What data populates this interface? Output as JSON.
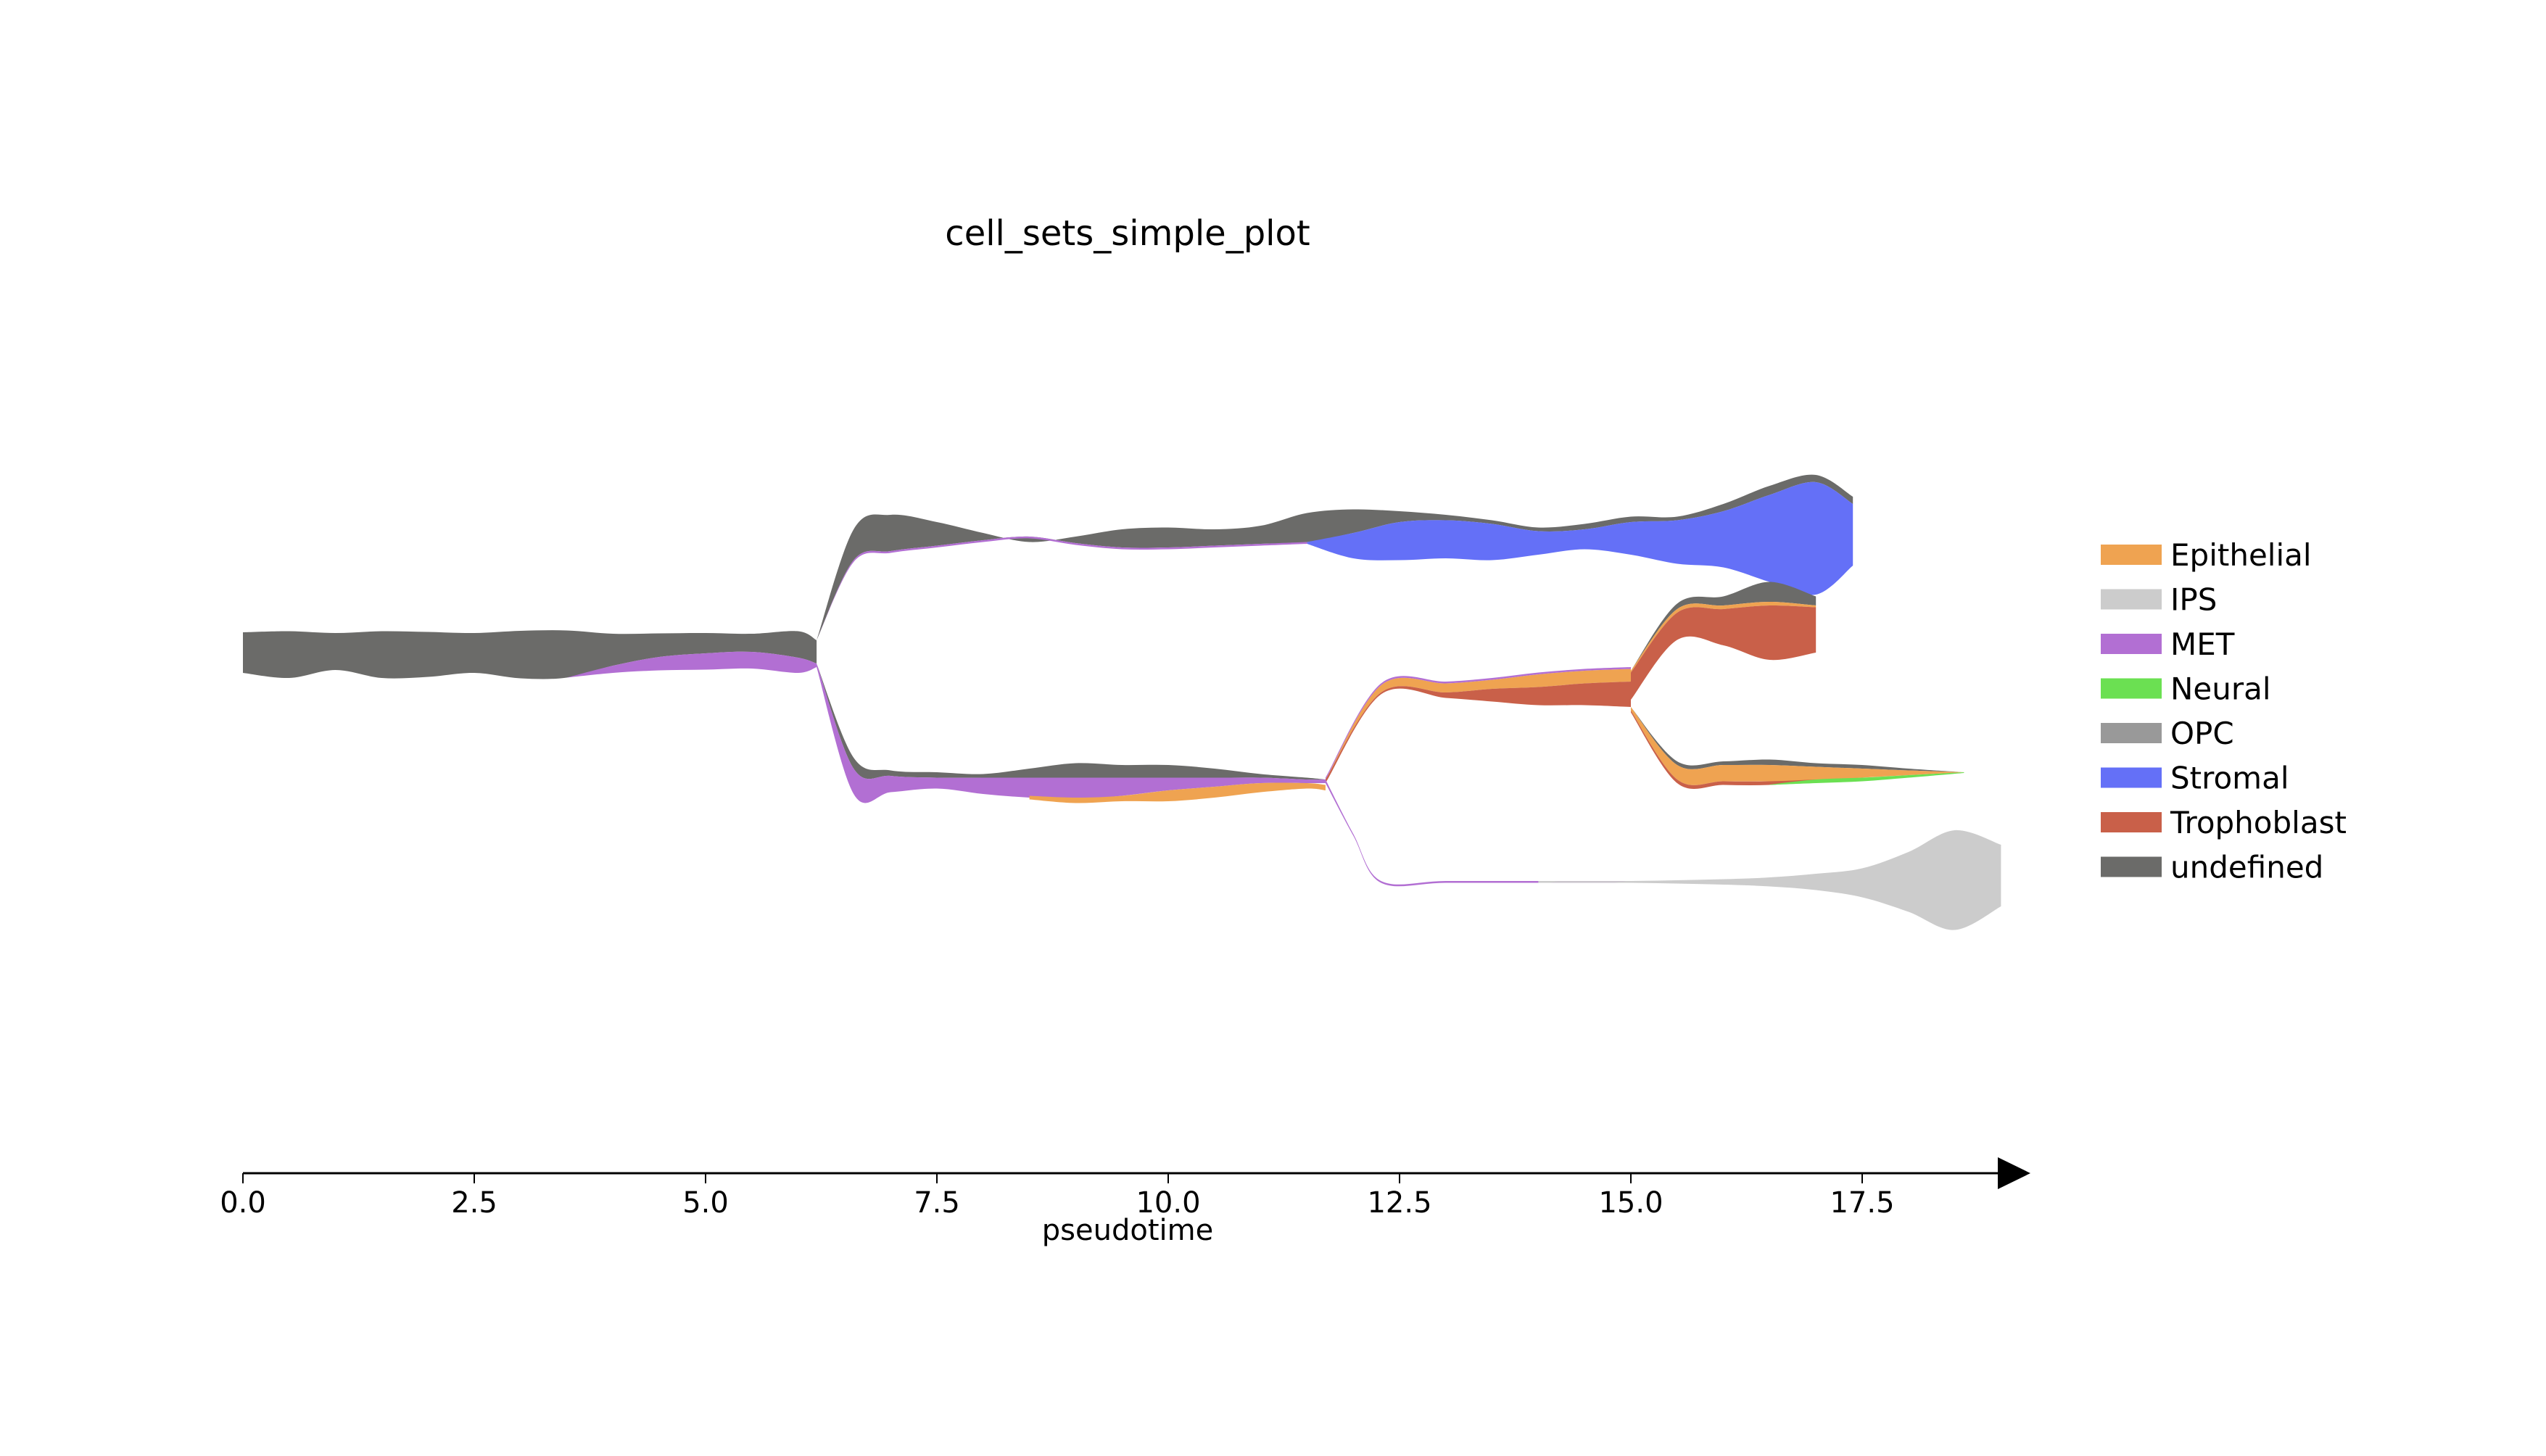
{
  "chart_data": {
    "type": "area",
    "title": "cell_sets_simple_plot",
    "xlabel": "pseudotime",
    "ylabel": "",
    "xlim": [
      0.0,
      19.4
    ],
    "xticks": [
      "0.0",
      "2.5",
      "5.0",
      "7.5",
      "10.0",
      "12.5",
      "15.0",
      "17.5"
    ],
    "legend_position": "right",
    "legend": [
      {
        "name": "Epithelial",
        "color": "#EFA351"
      },
      {
        "name": "IPS",
        "color": "#CCCCCC"
      },
      {
        "name": "MET",
        "color": "#B26FD3"
      },
      {
        "name": "Neural",
        "color": "#6BE052"
      },
      {
        "name": "OPC",
        "color": "#999999"
      },
      {
        "name": "Stromal",
        "color": "#6470F7"
      },
      {
        "name": "Trophoblast",
        "color": "#C96049"
      },
      {
        "name": "undefined",
        "color": "#6B6B69"
      }
    ],
    "branches": [
      {
        "name": "root",
        "layers": [
          {
            "type": "undefined",
            "x": [
              0.0,
              0.5,
              1.0,
              1.5,
              2.0,
              2.5,
              3.0,
              3.5,
              4.0,
              4.5,
              5.0,
              5.5,
              6.0,
              6.2
            ],
            "top": [
              0.56,
              0.59,
              0.54,
              0.59,
              0.57,
              0.54,
              0.6,
              0.61,
              0.52,
              0.53,
              0.54,
              0.52,
              0.59,
              0.34
            ],
            "bottom": [
              -0.56,
              -0.7,
              -0.48,
              -0.7,
              -0.67,
              -0.56,
              -0.71,
              -0.69,
              -0.36,
              -0.12,
              -0.02,
              0.02,
              -0.14,
              -0.3
            ]
          },
          {
            "type": "MET",
            "x": [
              3.5,
              4.0,
              4.5,
              5.0,
              5.5,
              6.0,
              6.2
            ],
            "top": [
              -0.69,
              -0.36,
              -0.12,
              -0.02,
              0.02,
              -0.14,
              -0.3
            ],
            "bottom": [
              -0.69,
              -0.56,
              -0.49,
              -0.47,
              -0.44,
              -0.56,
              -0.4
            ]
          }
        ]
      },
      {
        "name": "upper",
        "layers": [
          {
            "type": "undefined",
            "x": [
              6.2,
              6.6,
              7.0,
              7.5,
              8.0,
              8.5,
              9.0,
              9.5,
              10.0,
              10.5,
              11.0,
              11.5,
              12.0,
              12.5,
              13.0,
              13.5,
              14.0,
              14.5,
              15.0,
              15.5,
              16.0,
              16.5,
              17.0,
              17.4
            ],
            "top": [
              0.34,
              3.4,
              3.8,
              3.6,
              3.3,
              3.05,
              3.2,
              3.4,
              3.45,
              3.4,
              3.5,
              3.85,
              3.95,
              3.9,
              3.8,
              3.65,
              3.45,
              3.55,
              3.75,
              3.75,
              4.1,
              4.6,
              4.9,
              4.3
            ],
            "bottom": [
              0.34,
              2.55,
              2.8,
              2.95,
              3.1,
              3.2,
              3.02,
              2.9,
              2.9,
              2.95,
              3.0,
              3.05,
              3.3,
              3.6,
              3.65,
              3.55,
              3.35,
              3.4,
              3.6,
              3.65,
              3.9,
              4.35,
              4.7,
              4.1
            ]
          },
          {
            "type": "Stromal",
            "x": [
              11.5,
              12.0,
              12.5,
              13.0,
              13.5,
              14.0,
              14.5,
              15.0,
              15.5,
              16.0,
              16.5,
              17.0,
              17.4
            ],
            "top": [
              3.05,
              3.3,
              3.6,
              3.65,
              3.55,
              3.35,
              3.4,
              3.6,
              3.65,
              3.9,
              4.35,
              4.7,
              4.1
            ],
            "bottom": [
              3.0,
              2.6,
              2.55,
              2.6,
              2.55,
              2.7,
              2.85,
              2.7,
              2.45,
              2.35,
              1.95,
              1.6,
              2.4
            ]
          },
          {
            "type": "MET",
            "x": [
              6.2,
              6.6,
              7.0,
              7.5,
              8.0,
              8.5,
              9.0,
              9.5,
              10.0,
              10.5,
              11.0,
              11.5
            ],
            "top": [
              0.34,
              2.55,
              2.8,
              2.95,
              3.1,
              3.2,
              3.02,
              2.9,
              2.9,
              2.95,
              3.0,
              3.05
            ],
            "bottom": [
              0.34,
              2.5,
              2.75,
              2.9,
              3.05,
              3.15,
              2.97,
              2.85,
              2.85,
              2.9,
              2.95,
              3.0
            ]
          }
        ]
      },
      {
        "name": "middle",
        "layers": [
          {
            "type": "undefined",
            "x": [
              6.2,
              6.6,
              7.0,
              7.5,
              8.0,
              8.5,
              9.0,
              9.5,
              10.0,
              10.5,
              11.0,
              11.5,
              11.7
            ],
            "top": [
              -0.3,
              -2.9,
              -3.25,
              -3.3,
              -3.35,
              -3.2,
              -3.05,
              -3.1,
              -3.1,
              -3.2,
              -3.35,
              -3.45,
              -3.5
            ],
            "bottom": [
              -0.3,
              -3.2,
              -3.4,
              -3.45,
              -3.45,
              -3.45,
              -3.45,
              -3.45,
              -3.45,
              -3.45,
              -3.45,
              -3.5,
              -3.5
            ]
          },
          {
            "type": "MET",
            "x": [
              6.2,
              6.6,
              7.0,
              7.5,
              8.0,
              8.5,
              9.0,
              9.5,
              10.0,
              10.5,
              11.0,
              11.5,
              11.7
            ],
            "top": [
              -0.3,
              -3.2,
              -3.4,
              -3.45,
              -3.45,
              -3.45,
              -3.45,
              -3.45,
              -3.45,
              -3.45,
              -3.45,
              -3.5,
              -3.5
            ],
            "bottom": [
              -0.4,
              -3.9,
              -3.85,
              -3.75,
              -3.9,
              -4.0,
              -4.05,
              -3.95,
              -3.8,
              -3.7,
              -3.6,
              -3.6,
              -3.6
            ]
          },
          {
            "type": "Epithelial",
            "x": [
              8.5,
              9.0,
              9.5,
              10.0,
              10.5,
              11.0,
              11.5,
              11.7
            ],
            "top": [
              -3.95,
              -4.0,
              -3.95,
              -3.8,
              -3.7,
              -3.6,
              -3.6,
              -3.65
            ],
            "bottom": [
              -4.05,
              -4.15,
              -4.1,
              -4.1,
              -4.0,
              -3.85,
              -3.75,
              -3.8
            ]
          }
        ]
      },
      {
        "name": "troph",
        "layers": [
          {
            "type": "Epithelial",
            "x": [
              11.7,
              12.3,
              13.0,
              13.5,
              14.0,
              14.5,
              15.0
            ],
            "top": [
              -3.5,
              -0.9,
              -0.85,
              -0.75,
              -0.6,
              -0.5,
              -0.45
            ],
            "bottom": [
              -3.5,
              -1.1,
              -1.1,
              -1.0,
              -0.95,
              -0.85,
              -0.8
            ]
          },
          {
            "type": "Trophoblast",
            "x": [
              11.7,
              12.3,
              13.0,
              13.5,
              14.0,
              14.5,
              15.0
            ],
            "top": [
              -3.5,
              -1.1,
              -1.1,
              -1.0,
              -0.95,
              -0.85,
              -0.8
            ],
            "bottom": [
              -3.6,
              -1.15,
              -1.25,
              -1.35,
              -1.45,
              -1.45,
              -1.5
            ]
          },
          {
            "type": "MET",
            "x": [
              11.7,
              12.3,
              13.0,
              13.5,
              14.0,
              14.5,
              15.0
            ],
            "top": [
              -3.45,
              -0.85,
              -0.8,
              -0.7,
              -0.55,
              -0.45,
              -0.4
            ],
            "bottom": [
              -3.5,
              -0.9,
              -0.85,
              -0.75,
              -0.6,
              -0.5,
              -0.45
            ]
          }
        ]
      },
      {
        "name": "troph-upper",
        "layers": [
          {
            "type": "undefined",
            "x": [
              15.0,
              15.5,
              16.0,
              16.5,
              17.0
            ],
            "top": [
              -0.5,
              1.35,
              1.55,
              1.95,
              1.55
            ],
            "bottom": [
              -0.5,
              1.2,
              1.3,
              1.4,
              1.3
            ]
          },
          {
            "type": "Epithelial",
            "x": [
              15.0,
              15.5,
              16.0,
              16.5,
              17.0
            ],
            "top": [
              -0.5,
              1.2,
              1.3,
              1.4,
              1.3
            ],
            "bottom": [
              -0.55,
              1.1,
              1.2,
              1.3,
              1.25
            ]
          },
          {
            "type": "Trophoblast",
            "x": [
              15.0,
              15.5,
              16.0,
              16.5,
              17.0
            ],
            "top": [
              -0.55,
              1.1,
              1.2,
              1.3,
              1.25
            ],
            "bottom": [
              -1.3,
              0.35,
              0.2,
              -0.2,
              0.0
            ]
          }
        ]
      },
      {
        "name": "troph-lower",
        "layers": [
          {
            "type": "undefined",
            "x": [
              15.0,
              15.5,
              16.0,
              16.5,
              17.0,
              17.5,
              18.0,
              18.6
            ],
            "top": [
              -1.5,
              -3.0,
              -3.0,
              -2.95,
              -3.05,
              -3.1,
              -3.2,
              -3.3
            ],
            "bottom": [
              -1.5,
              -3.1,
              -3.1,
              -3.1,
              -3.15,
              -3.2,
              -3.25,
              -3.3
            ]
          },
          {
            "type": "Epithelial",
            "x": [
              15.0,
              15.5,
              16.0,
              16.5,
              17.0,
              17.5,
              18.0,
              18.6
            ],
            "top": [
              -1.5,
              -3.1,
              -3.1,
              -3.1,
              -3.15,
              -3.2,
              -3.25,
              -3.3
            ],
            "bottom": [
              -1.6,
              -3.5,
              -3.55,
              -3.55,
              -3.55,
              -3.45,
              -3.38,
              -3.3
            ]
          },
          {
            "type": "Trophoblast",
            "x": [
              15.0,
              15.5,
              16.0,
              16.5,
              17.0
            ],
            "top": [
              -1.6,
              -3.5,
              -3.55,
              -3.55,
              -3.5
            ],
            "bottom": [
              -1.65,
              -3.6,
              -3.65,
              -3.65,
              -3.55
            ]
          },
          {
            "type": "Neural",
            "x": [
              16.5,
              17.0,
              17.5,
              18.0,
              18.6
            ],
            "top": [
              -3.64,
              -3.5,
              -3.45,
              -3.38,
              -3.3
            ],
            "bottom": [
              -3.65,
              -3.6,
              -3.55,
              -3.45,
              -3.32
            ]
          }
        ]
      },
      {
        "name": "ips",
        "layers": [
          {
            "type": "MET",
            "x": [
              11.7,
              12.0,
              12.3,
              13.0,
              14.0,
              15.0
            ],
            "top": [
              -3.5,
              -5.0,
              -6.3,
              -6.3,
              -6.3,
              -6.3
            ],
            "bottom": [
              -3.6,
              -5.05,
              -6.35,
              -6.35,
              -6.35,
              -6.35
            ]
          },
          {
            "type": "IPS",
            "x": [
              14.0,
              15.0,
              16.0,
              16.5,
              17.0,
              17.5,
              18.0,
              18.5,
              19.0
            ],
            "top": [
              -6.3,
              -6.3,
              -6.25,
              -6.2,
              -6.1,
              -5.95,
              -5.5,
              -4.9,
              -5.3
            ],
            "bottom": [
              -6.35,
              -6.35,
              -6.4,
              -6.45,
              -6.55,
              -6.75,
              -7.15,
              -7.65,
              -7.0
            ]
          }
        ]
      }
    ]
  }
}
